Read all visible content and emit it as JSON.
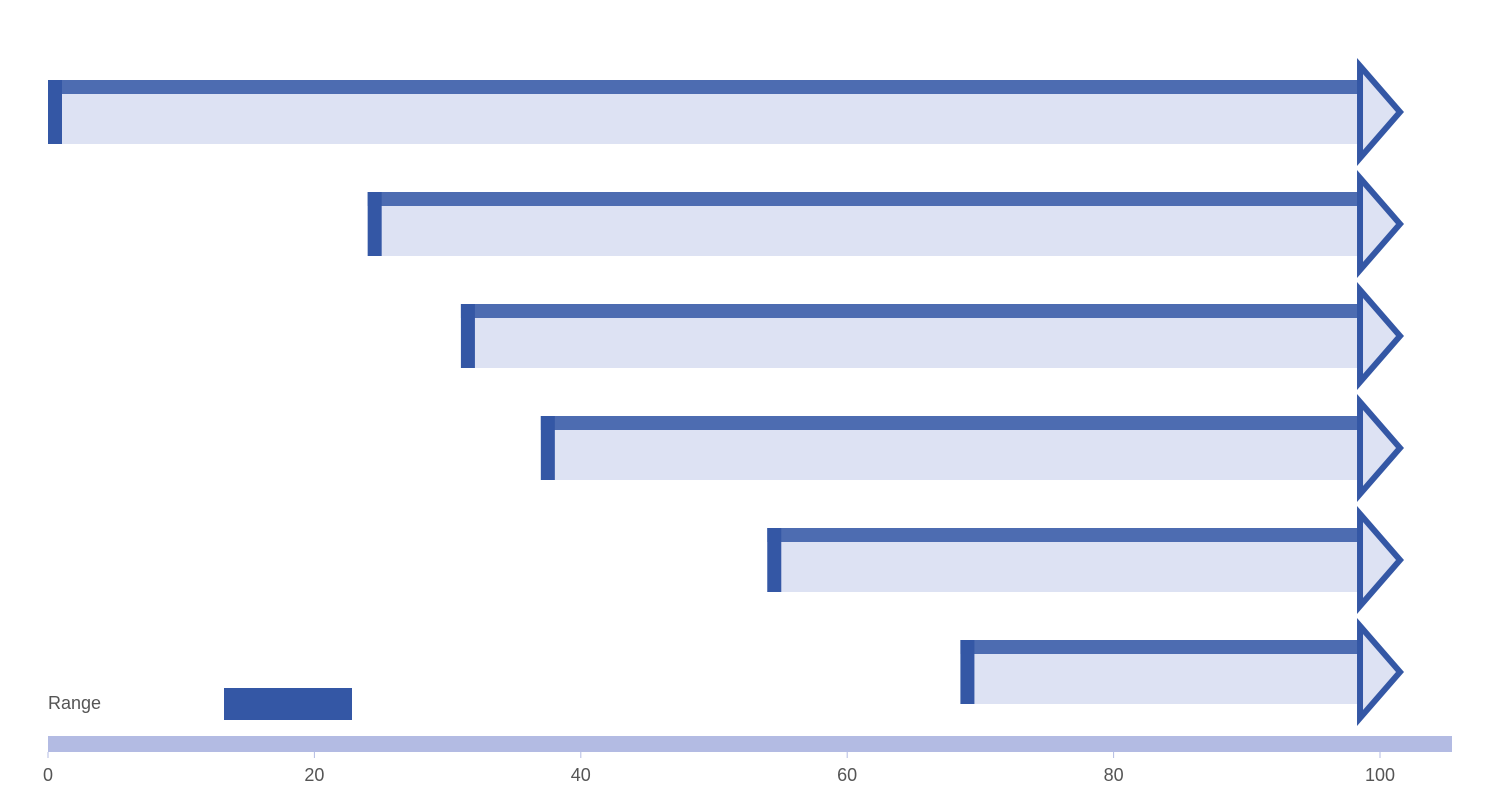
{
  "chart_data": {
    "type": "range",
    "series": [
      {
        "name": "Range",
        "color": "#3457a5",
        "starts": [
          0,
          24,
          31,
          37,
          54,
          68.5
        ],
        "values": [
          98.5,
          98.5,
          98.5,
          98.5,
          98.5,
          98.5
        ]
      }
    ],
    "xlim": [
      0,
      105
    ],
    "xticks": [
      0,
      20,
      40,
      60,
      80,
      100
    ]
  }
}
